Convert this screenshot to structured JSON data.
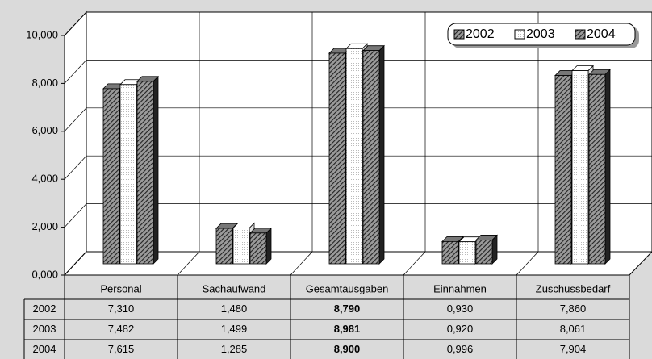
{
  "chart_data": {
    "type": "bar3d",
    "categories": [
      "Personal",
      "Sachaufwand",
      "Gesamtausgaben",
      "Einnahmen",
      "Zuschussbedarf"
    ],
    "series": [
      {
        "name": "2002",
        "color": "#4a4a4a",
        "pattern": "hatch",
        "values": [
          7.31,
          1.48,
          8.79,
          0.93,
          7.86
        ],
        "value_labels": [
          "7,310",
          "1,480",
          "8,790",
          "0,930",
          "7,860"
        ]
      },
      {
        "name": "2003",
        "color": "#ffffff",
        "pattern": "dots",
        "values": [
          7.482,
          1.499,
          8.981,
          0.92,
          8.061
        ],
        "value_labels": [
          "7,482",
          "1,499",
          "8,981",
          "0,920",
          "8,061"
        ]
      },
      {
        "name": "2004",
        "color": "#4a4a4a",
        "pattern": "hatch",
        "values": [
          7.615,
          1.285,
          8.9,
          0.996,
          7.904
        ],
        "value_labels": [
          "7,615",
          "1,285",
          "8,900",
          "0,996",
          "7,904"
        ]
      }
    ],
    "ylim": [
      0,
      10
    ],
    "yticks": [
      {
        "value": 0,
        "label": "0,000"
      },
      {
        "value": 2,
        "label": "2,000"
      },
      {
        "value": 4,
        "label": "4,000"
      },
      {
        "value": 6,
        "label": "6,000"
      },
      {
        "value": 8,
        "label": "8,000"
      },
      {
        "value": 10,
        "label": "10,000"
      }
    ],
    "grid": true,
    "legend": "top-right",
    "data_table": true
  }
}
